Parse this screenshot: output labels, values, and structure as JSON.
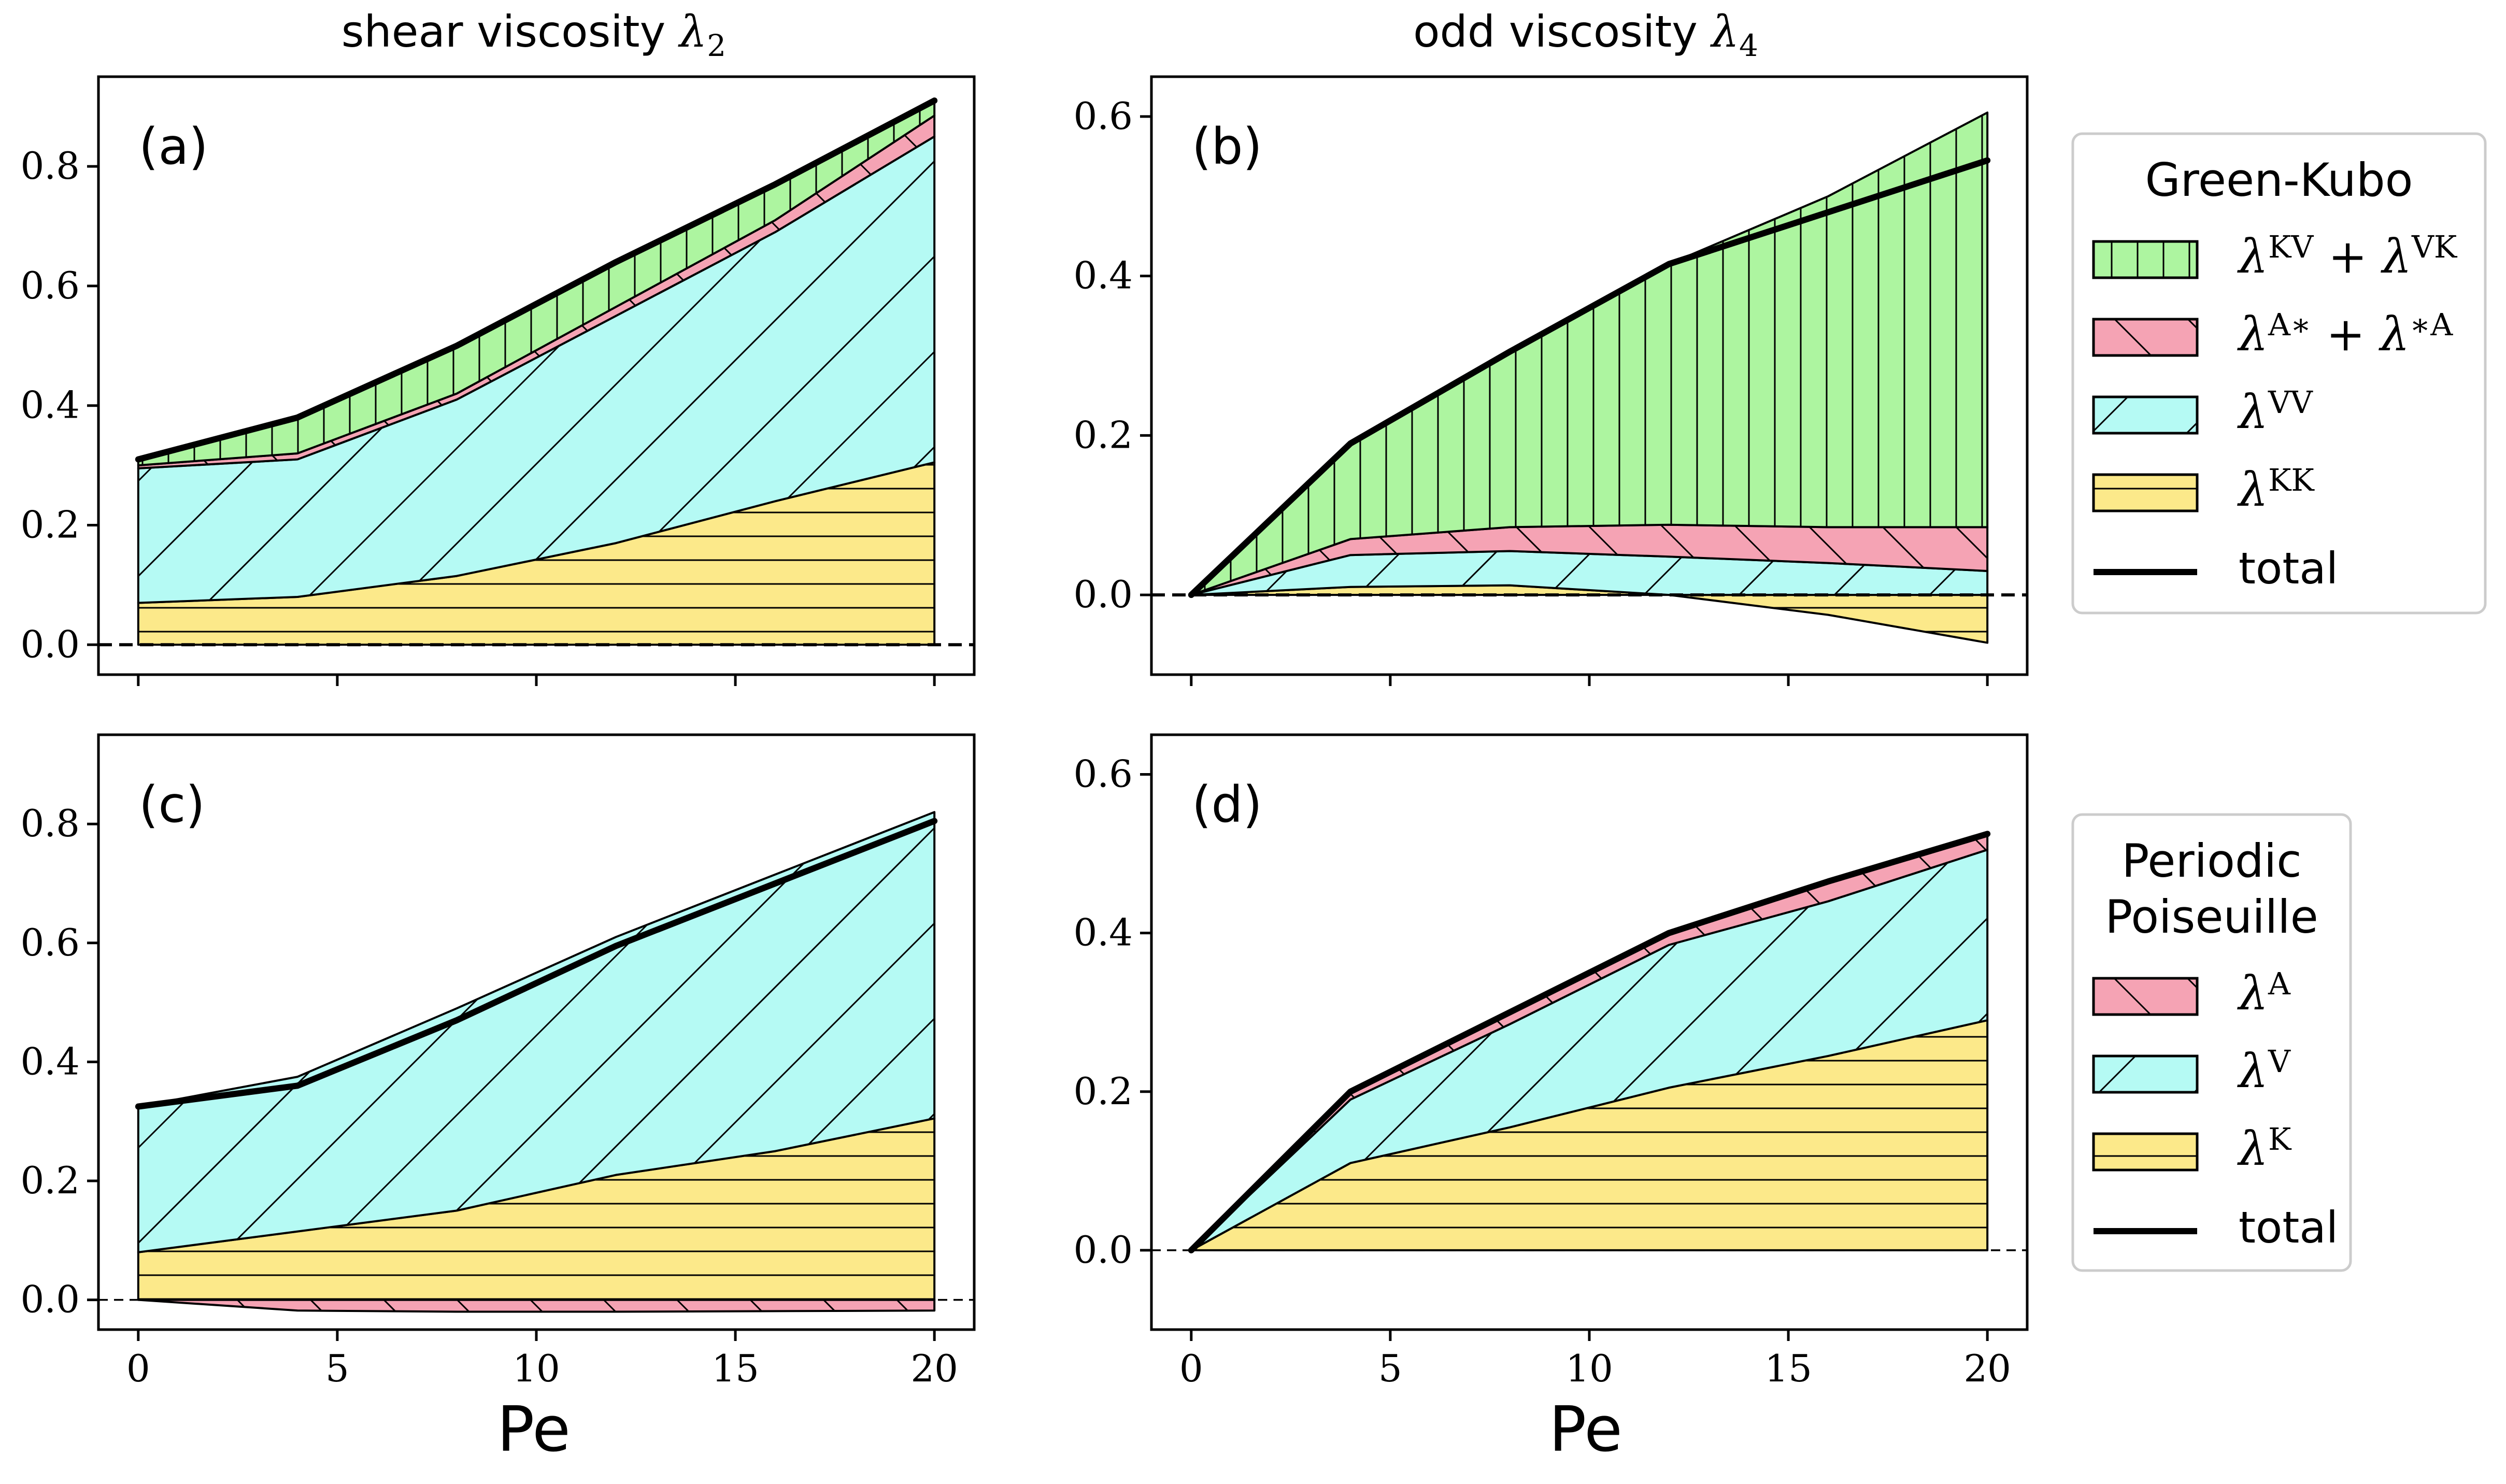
{
  "figure": {
    "column_titles": {
      "left": {
        "text": "shear viscosity ",
        "symbol": "λ",
        "subscript": "2"
      },
      "right": {
        "text": "odd viscosity ",
        "symbol": "λ",
        "subscript": "4"
      }
    },
    "xlabel": "Pe"
  },
  "colors": {
    "green": "#adf5a0",
    "red": "#f5a3b4",
    "cyan": "#b5faf4",
    "yellow": "#fce98a",
    "line": "#000000"
  },
  "legends": {
    "green_kubo": {
      "title_lines": [
        "Green-Kubo"
      ],
      "entries": [
        {
          "fill": "green",
          "hatch": "vertical",
          "parts": [
            {
              "t": "λ",
              "s": "KV"
            },
            {
              "op": " + "
            },
            {
              "t": "λ",
              "s": "VK"
            }
          ]
        },
        {
          "fill": "red",
          "hatch": "backslash",
          "parts": [
            {
              "t": "λ",
              "s": "A∗"
            },
            {
              "op": " + "
            },
            {
              "t": "λ",
              "s": "∗A"
            }
          ]
        },
        {
          "fill": "cyan",
          "hatch": "slash",
          "parts": [
            {
              "t": "λ",
              "s": "VV"
            }
          ]
        },
        {
          "fill": "yellow",
          "hatch": "horizontal",
          "parts": [
            {
              "t": "λ",
              "s": "KK"
            }
          ]
        },
        {
          "line": true,
          "label": "total"
        }
      ]
    },
    "poiseuille": {
      "title_lines": [
        "Periodic",
        "Poiseuille"
      ],
      "entries": [
        {
          "fill": "red",
          "hatch": "backslash",
          "parts": [
            {
              "t": "λ",
              "s": "A"
            }
          ]
        },
        {
          "fill": "cyan",
          "hatch": "slash",
          "parts": [
            {
              "t": "λ",
              "s": "V"
            }
          ]
        },
        {
          "fill": "yellow",
          "hatch": "horizontal",
          "parts": [
            {
              "t": "λ",
              "s": "K"
            }
          ]
        },
        {
          "line": true,
          "label": "total"
        }
      ]
    }
  },
  "chart_data": [
    {
      "id": "a",
      "panel_label": "(a)",
      "type": "area",
      "x": [
        0,
        4,
        8,
        12,
        16,
        20
      ],
      "xlim": [
        -1,
        21
      ],
      "ylim": [
        -0.05,
        0.95
      ],
      "xticks": [
        0,
        5,
        10,
        15,
        20
      ],
      "xtick_labels": [
        "0",
        "5",
        "10",
        "15",
        "20"
      ],
      "show_xtick_labels": false,
      "yticks": [
        0.0,
        0.2,
        0.4,
        0.6,
        0.8
      ],
      "ytick_labels": [
        "0.0",
        "0.2",
        "0.4",
        "0.6",
        "0.8"
      ],
      "baseline_style": "dashed",
      "series": [
        {
          "name": "λ^KK",
          "color": "yellow",
          "hatch": "horizontal",
          "lower": [
            0,
            0,
            0,
            0,
            0,
            0
          ],
          "upper": [
            0.07,
            0.08,
            0.115,
            0.17,
            0.24,
            0.305
          ]
        },
        {
          "name": "λ^VV",
          "color": "cyan",
          "hatch": "slash",
          "lower": [
            0.07,
            0.08,
            0.115,
            0.17,
            0.24,
            0.305
          ],
          "upper": [
            0.295,
            0.31,
            0.41,
            0.55,
            0.69,
            0.85
          ]
        },
        {
          "name": "λ^A* + λ^*A",
          "color": "red",
          "hatch": "backslash",
          "lower": [
            0.295,
            0.31,
            0.41,
            0.55,
            0.69,
            0.85
          ],
          "upper": [
            0.3,
            0.32,
            0.42,
            0.565,
            0.71,
            0.885
          ]
        },
        {
          "name": "λ^KV + λ^VK",
          "color": "green",
          "hatch": "vertical",
          "lower": [
            0.3,
            0.32,
            0.42,
            0.565,
            0.71,
            0.885
          ],
          "upper": [
            0.31,
            0.38,
            0.5,
            0.64,
            0.77,
            0.91
          ]
        }
      ],
      "total": [
        0.31,
        0.38,
        0.5,
        0.64,
        0.77,
        0.91
      ]
    },
    {
      "id": "b",
      "panel_label": "(b)",
      "type": "area",
      "x": [
        0,
        4,
        8,
        12,
        16,
        20
      ],
      "xlim": [
        -1,
        21
      ],
      "ylim": [
        -0.1,
        0.65
      ],
      "xticks": [
        0,
        5,
        10,
        15,
        20
      ],
      "xtick_labels": [
        "0",
        "5",
        "10",
        "15",
        "20"
      ],
      "show_xtick_labels": false,
      "yticks": [
        0.0,
        0.2,
        0.4,
        0.6
      ],
      "ytick_labels": [
        "0.0",
        "0.2",
        "0.4",
        "0.6"
      ],
      "baseline_style": "dashed",
      "series": [
        {
          "name": "λ^KK",
          "color": "yellow",
          "hatch": "horizontal",
          "lower": [
            0,
            0,
            0,
            0,
            -0.025,
            -0.06
          ],
          "upper": [
            0,
            0.01,
            0.012,
            0,
            0,
            0
          ]
        },
        {
          "name": "λ^VV",
          "color": "cyan",
          "hatch": "slash",
          "lower": [
            0,
            0.01,
            0.012,
            0,
            0,
            0
          ],
          "upper": [
            0,
            0.05,
            0.055,
            0.048,
            0.04,
            0.03
          ]
        },
        {
          "name": "λ^A* + λ^*A",
          "color": "red",
          "hatch": "backslash",
          "lower": [
            0,
            0.05,
            0.055,
            0.048,
            0.04,
            0.03
          ],
          "upper": [
            0,
            0.07,
            0.085,
            0.088,
            0.085,
            0.085
          ]
        },
        {
          "name": "λ^KV + λ^VK",
          "color": "green",
          "hatch": "vertical",
          "lower": [
            0,
            0.07,
            0.085,
            0.088,
            0.085,
            0.085
          ],
          "upper": [
            0,
            0.19,
            0.305,
            0.415,
            0.5,
            0.605
          ]
        }
      ],
      "total": [
        0,
        0.19,
        0.305,
        0.415,
        0.48,
        0.545
      ]
    },
    {
      "id": "c",
      "panel_label": "(c)",
      "type": "area",
      "x": [
        0,
        4,
        8,
        12,
        16,
        20
      ],
      "xlim": [
        -1,
        21
      ],
      "ylim": [
        -0.05,
        0.95
      ],
      "xticks": [
        0,
        5,
        10,
        15,
        20
      ],
      "xtick_labels": [
        "0",
        "5",
        "10",
        "15",
        "20"
      ],
      "show_xtick_labels": true,
      "yticks": [
        0.0,
        0.2,
        0.4,
        0.6,
        0.8
      ],
      "ytick_labels": [
        "0.0",
        "0.2",
        "0.4",
        "0.6",
        "0.8"
      ],
      "baseline_style": "dashed-thin",
      "series": [
        {
          "name": "λ^A",
          "color": "red",
          "hatch": "backslash",
          "lower": [
            0,
            -0.018,
            -0.02,
            -0.02,
            -0.019,
            -0.018
          ],
          "upper": [
            0,
            0,
            0,
            0,
            0,
            0
          ]
        },
        {
          "name": "λ^K",
          "color": "yellow",
          "hatch": "horizontal",
          "lower": [
            0,
            0,
            0,
            0,
            0,
            0
          ],
          "upper": [
            0.08,
            0.115,
            0.15,
            0.21,
            0.25,
            0.305
          ]
        },
        {
          "name": "λ^V",
          "color": "cyan",
          "hatch": "slash",
          "lower": [
            0.08,
            0.115,
            0.15,
            0.21,
            0.25,
            0.305
          ],
          "upper": [
            0.325,
            0.375,
            0.49,
            0.61,
            0.715,
            0.82
          ]
        }
      ],
      "total": [
        0.325,
        0.36,
        0.47,
        0.595,
        0.7,
        0.805
      ]
    },
    {
      "id": "d",
      "panel_label": "(d)",
      "type": "area",
      "x": [
        0,
        4,
        8,
        12,
        16,
        20
      ],
      "xlim": [
        -1,
        21
      ],
      "ylim": [
        -0.1,
        0.65
      ],
      "xticks": [
        0,
        5,
        10,
        15,
        20
      ],
      "xtick_labels": [
        "0",
        "5",
        "10",
        "15",
        "20"
      ],
      "show_xtick_labels": true,
      "yticks": [
        0.0,
        0.2,
        0.4,
        0.6
      ],
      "ytick_labels": [
        "0.0",
        "0.2",
        "0.4",
        "0.6"
      ],
      "baseline_style": "dashed-thin",
      "series": [
        {
          "name": "λ^K",
          "color": "yellow",
          "hatch": "horizontal",
          "lower": [
            0,
            0,
            0,
            0,
            0,
            0
          ],
          "upper": [
            0,
            0.11,
            0.155,
            0.205,
            0.245,
            0.29
          ]
        },
        {
          "name": "λ^V",
          "color": "cyan",
          "hatch": "slash",
          "lower": [
            0,
            0.11,
            0.155,
            0.205,
            0.245,
            0.29
          ],
          "upper": [
            0,
            0.19,
            0.285,
            0.385,
            0.44,
            0.505
          ]
        },
        {
          "name": "λ^A",
          "color": "red",
          "hatch": "backslash",
          "lower": [
            0,
            0.19,
            0.285,
            0.385,
            0.44,
            0.505
          ],
          "upper": [
            0,
            0.2,
            0.3,
            0.4,
            0.465,
            0.525
          ]
        }
      ],
      "total": [
        0,
        0.2,
        0.3,
        0.4,
        0.465,
        0.525
      ]
    }
  ]
}
